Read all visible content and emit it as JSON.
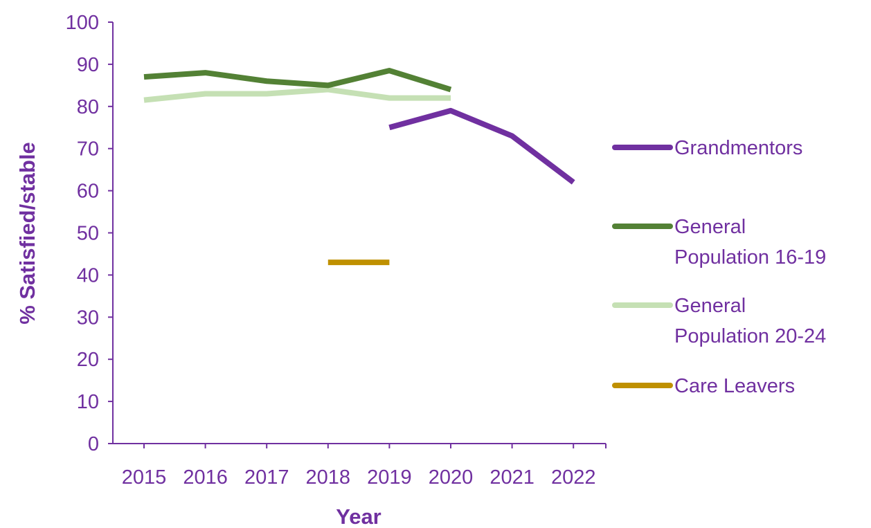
{
  "chart_data": {
    "type": "line",
    "title": "",
    "xlabel": "Year",
    "ylabel": "% Satisfied/stable",
    "categories": [
      "2015",
      "2016",
      "2017",
      "2018",
      "2019",
      "2020",
      "2021",
      "2022"
    ],
    "ylim": [
      0,
      100
    ],
    "yticks": [
      0,
      10,
      20,
      30,
      40,
      50,
      60,
      70,
      80,
      90,
      100
    ],
    "grid": false,
    "legend_position": "right",
    "series": [
      {
        "name": "Grandmentors",
        "color": "#7030a0",
        "values": [
          null,
          null,
          null,
          null,
          75,
          79,
          73,
          62
        ]
      },
      {
        "name": "General Population 16-19",
        "legend_lines": [
          "General",
          "Population 16-19"
        ],
        "color": "#538135",
        "values": [
          87,
          88,
          86,
          85,
          88.5,
          84,
          null,
          null
        ]
      },
      {
        "name": "General Population 20-24",
        "legend_lines": [
          "General",
          "Population 20-24"
        ],
        "color": "#c5e0b4",
        "values": [
          81.5,
          83,
          83,
          84,
          82,
          82,
          null,
          null
        ]
      },
      {
        "name": "Care Leavers",
        "color": "#bf9000",
        "values": [
          null,
          null,
          null,
          43,
          43,
          null,
          null,
          null
        ]
      }
    ]
  }
}
